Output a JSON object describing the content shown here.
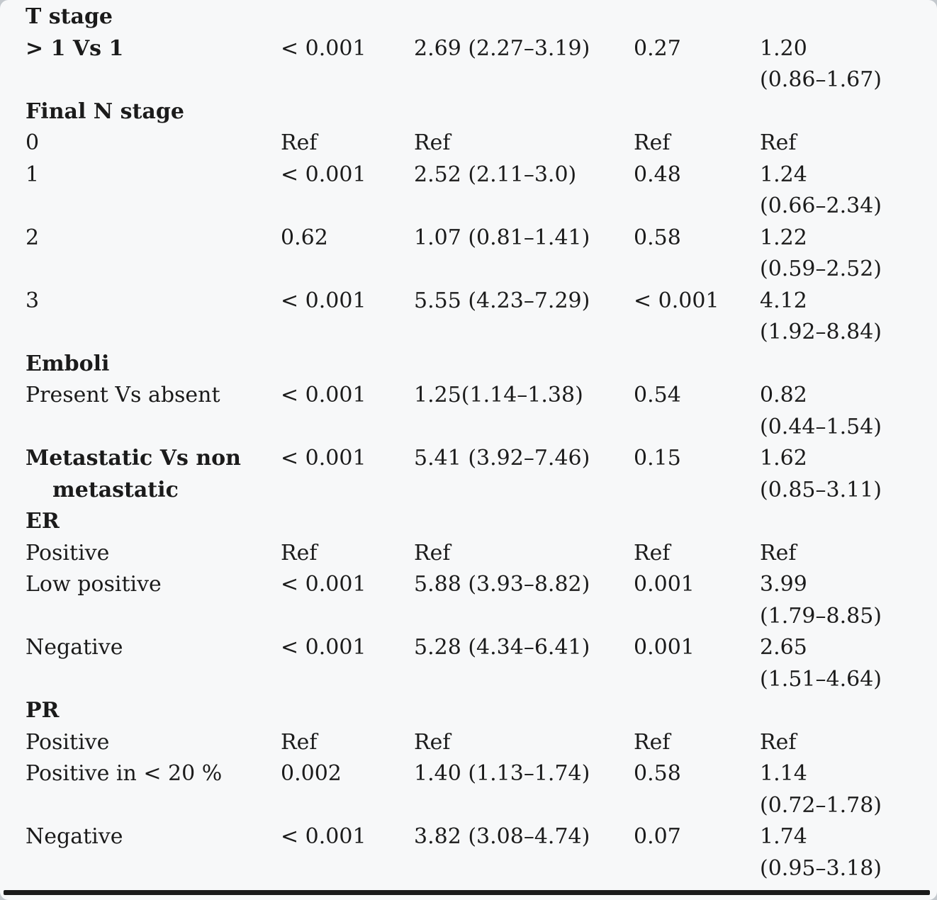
{
  "page": {
    "background_color": "#f7f8f9",
    "text_color": "#1b1b1b",
    "rule_color": "#1a1a1a"
  },
  "table": {
    "columns": [
      "variable",
      "p_value_1",
      "estimate_ci_1",
      "p_value_2",
      "estimate_ci_2"
    ],
    "rows": [
      {
        "type": "section",
        "label": "T stage"
      },
      {
        "type": "data",
        "bold": true,
        "label": "> 1 Vs 1",
        "p1": "< 0.001",
        "est1": "2.69 (2.27–3.19)",
        "p2": "0.27",
        "est2": "1.20",
        "ci2": "(0.86–1.67)"
      },
      {
        "type": "section",
        "label": "Final N stage"
      },
      {
        "type": "data",
        "label": "0",
        "p1": "Ref",
        "est1": "Ref",
        "p2": "Ref",
        "est2": "Ref"
      },
      {
        "type": "data",
        "label": "1",
        "p1": "< 0.001",
        "est1": "2.52 (2.11–3.0)",
        "p2": "0.48",
        "est2": "1.24",
        "ci2": "(0.66–2.34)"
      },
      {
        "type": "data",
        "label": "2",
        "p1": "0.62",
        "est1": "1.07 (0.81–1.41)",
        "p2": "0.58",
        "est2": "1.22",
        "ci2": "(0.59–2.52)"
      },
      {
        "type": "data",
        "label": "3",
        "p1": "< 0.001",
        "est1": "5.55 (4.23–7.29)",
        "p2": "< 0.001",
        "est2": "4.12",
        "ci2": "(1.92–8.84)"
      },
      {
        "type": "section",
        "label": "Emboli"
      },
      {
        "type": "data",
        "label": "Present Vs absent",
        "p1": "< 0.001",
        "est1": "1.25(1.14–1.38)",
        "p2": "0.54",
        "est2": "0.82",
        "ci2": "(0.44–1.54)"
      },
      {
        "type": "data",
        "bold": true,
        "label": "Metastatic Vs non",
        "label2": "metastatic",
        "p1": "< 0.001",
        "est1": "5.41 (3.92–7.46)",
        "p2": "0.15",
        "est2": "1.62",
        "ci2": "(0.85–3.11)"
      },
      {
        "type": "section",
        "label": "ER"
      },
      {
        "type": "data",
        "label": "Positive",
        "p1": "Ref",
        "est1": "Ref",
        "p2": "Ref",
        "est2": "Ref"
      },
      {
        "type": "data",
        "label": "Low positive",
        "p1": "< 0.001",
        "est1": "5.88 (3.93–8.82)",
        "p2": "0.001",
        "est2": "3.99",
        "ci2": "(1.79–8.85)"
      },
      {
        "type": "data",
        "label": "Negative",
        "p1": "< 0.001",
        "est1": "5.28 (4.34–6.41)",
        "p2": "0.001",
        "est2": "2.65",
        "ci2": "(1.51–4.64)"
      },
      {
        "type": "section",
        "label": "PR"
      },
      {
        "type": "data",
        "label": "Positive",
        "p1": "Ref",
        "est1": "Ref",
        "p2": "Ref",
        "est2": "Ref"
      },
      {
        "type": "data",
        "label": "Positive in < 20 %",
        "p1": "0.002",
        "est1": "1.40 (1.13–1.74)",
        "p2": "0.58",
        "est2": "1.14",
        "ci2": "(0.72–1.78)"
      },
      {
        "type": "data",
        "label": "Negative",
        "p1": "< 0.001",
        "est1": "3.82 (3.08–4.74)",
        "p2": "0.07",
        "est2": "1.74",
        "ci2": "(0.95–3.18)"
      }
    ]
  }
}
